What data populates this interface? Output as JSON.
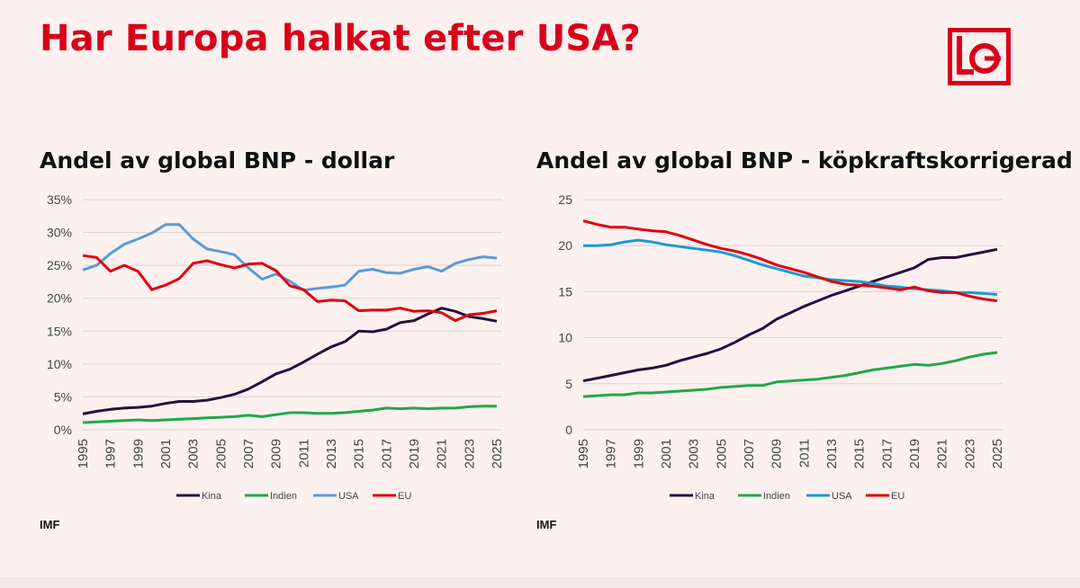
{
  "page": {
    "title": "Har Europa halkat efter USA?",
    "logo_text": "LO",
    "accent": "#d9001b"
  },
  "charts": [
    {
      "subtitle": "Andel av global BNP - dollar",
      "source": "IMF"
    },
    {
      "subtitle": "Andel av global BNP - köpkraftskorrigerad",
      "source": "IMF"
    }
  ],
  "chart_data": [
    {
      "type": "line",
      "title": "Andel av global BNP - dollar",
      "source": "IMF",
      "xlabel": "",
      "ylabel": "",
      "ylim": [
        0,
        35
      ],
      "yticks": [
        0,
        5,
        10,
        15,
        20,
        25,
        30,
        35
      ],
      "ytick_labels": [
        "0%",
        "5%",
        "10%",
        "15%",
        "20%",
        "25%",
        "30%",
        "35%"
      ],
      "grid": true,
      "legend": "bottom",
      "x": [
        1995,
        1996,
        1997,
        1998,
        1999,
        2000,
        2001,
        2002,
        2003,
        2004,
        2005,
        2006,
        2007,
        2008,
        2009,
        2010,
        2011,
        2012,
        2013,
        2014,
        2015,
        2016,
        2017,
        2018,
        2019,
        2020,
        2021,
        2022,
        2023,
        2024,
        2025
      ],
      "xtick_labels": [
        "1995",
        "1997",
        "1999",
        "2001",
        "2003",
        "2005",
        "2007",
        "2009",
        "2011",
        "2013",
        "2015",
        "2017",
        "2019",
        "2021",
        "2023",
        "2025"
      ],
      "series": [
        {
          "name": "Kina",
          "color": "#2a0f3d",
          "values": [
            2.4,
            2.8,
            3.1,
            3.3,
            3.4,
            3.6,
            4.0,
            4.3,
            4.3,
            4.5,
            4.9,
            5.4,
            6.2,
            7.3,
            8.5,
            9.2,
            10.3,
            11.5,
            12.6,
            13.4,
            15.0,
            14.9,
            15.3,
            16.3,
            16.6,
            17.6,
            18.5,
            18.0,
            17.2,
            16.9,
            16.5
          ]
        },
        {
          "name": "Indien",
          "color": "#1ea84a",
          "values": [
            1.1,
            1.2,
            1.3,
            1.4,
            1.5,
            1.4,
            1.5,
            1.6,
            1.7,
            1.8,
            1.9,
            2.0,
            2.2,
            2.0,
            2.3,
            2.6,
            2.6,
            2.5,
            2.5,
            2.6,
            2.8,
            3.0,
            3.3,
            3.2,
            3.3,
            3.2,
            3.3,
            3.3,
            3.5,
            3.6,
            3.6
          ]
        },
        {
          "name": "USA",
          "color": "#5b9bd5",
          "values": [
            24.3,
            25.0,
            26.8,
            28.2,
            29.0,
            29.9,
            31.2,
            31.2,
            29.0,
            27.5,
            27.1,
            26.6,
            24.6,
            22.9,
            23.7,
            22.6,
            21.2,
            21.5,
            21.7,
            22.0,
            24.1,
            24.4,
            23.9,
            23.8,
            24.4,
            24.8,
            24.1,
            25.3,
            25.9,
            26.3,
            26.1
          ]
        },
        {
          "name": "EU",
          "color": "#e0000f",
          "values": [
            26.5,
            26.2,
            24.1,
            25.0,
            24.1,
            21.3,
            22.0,
            23.0,
            25.3,
            25.7,
            25.1,
            24.6,
            25.2,
            25.3,
            24.2,
            21.9,
            21.3,
            19.5,
            19.7,
            19.6,
            18.1,
            18.2,
            18.2,
            18.5,
            18.0,
            18.1,
            17.8,
            16.6,
            17.5,
            17.7,
            18.1
          ]
        }
      ]
    },
    {
      "type": "line",
      "title": "Andel av global BNP - köpkraftskorrigerad",
      "source": "IMF",
      "xlabel": "",
      "ylabel": "",
      "ylim": [
        0,
        25
      ],
      "yticks": [
        0,
        5,
        10,
        15,
        20,
        25
      ],
      "ytick_labels": [
        "0",
        "5",
        "10",
        "15",
        "20",
        "25"
      ],
      "grid": true,
      "legend": "bottom",
      "x": [
        1995,
        1996,
        1997,
        1998,
        1999,
        2000,
        2001,
        2002,
        2003,
        2004,
        2005,
        2006,
        2007,
        2008,
        2009,
        2010,
        2011,
        2012,
        2013,
        2014,
        2015,
        2016,
        2017,
        2018,
        2019,
        2020,
        2021,
        2022,
        2023,
        2024,
        2025
      ],
      "xtick_labels": [
        "1995",
        "1997",
        "1999",
        "2001",
        "2003",
        "2005",
        "2007",
        "2009",
        "2011",
        "2013",
        "2015",
        "2017",
        "2019",
        "2021",
        "2023",
        "2025"
      ],
      "series": [
        {
          "name": "Kina",
          "color": "#2a0f3d",
          "values": [
            5.3,
            5.6,
            5.9,
            6.2,
            6.5,
            6.7,
            7.0,
            7.5,
            7.9,
            8.3,
            8.8,
            9.5,
            10.3,
            11.0,
            12.0,
            12.7,
            13.4,
            14.0,
            14.6,
            15.1,
            15.6,
            16.1,
            16.6,
            17.1,
            17.6,
            18.5,
            18.7,
            18.7,
            19.0,
            19.3,
            19.6
          ]
        },
        {
          "name": "Indien",
          "color": "#1ea84a",
          "values": [
            3.6,
            3.7,
            3.8,
            3.8,
            4.0,
            4.0,
            4.1,
            4.2,
            4.3,
            4.4,
            4.6,
            4.7,
            4.8,
            4.8,
            5.2,
            5.3,
            5.4,
            5.5,
            5.7,
            5.9,
            6.2,
            6.5,
            6.7,
            6.9,
            7.1,
            7.0,
            7.2,
            7.5,
            7.9,
            8.2,
            8.4
          ]
        },
        {
          "name": "USA",
          "color": "#1a9ad6",
          "values": [
            20.0,
            20.0,
            20.1,
            20.4,
            20.6,
            20.4,
            20.1,
            19.9,
            19.7,
            19.5,
            19.3,
            18.9,
            18.4,
            17.9,
            17.5,
            17.1,
            16.7,
            16.5,
            16.3,
            16.2,
            16.1,
            15.9,
            15.6,
            15.5,
            15.3,
            15.2,
            15.1,
            14.9,
            14.9,
            14.8,
            14.7
          ]
        },
        {
          "name": "EU",
          "color": "#e0000f",
          "values": [
            22.7,
            22.3,
            22.0,
            22.0,
            21.8,
            21.6,
            21.5,
            21.1,
            20.6,
            20.1,
            19.7,
            19.4,
            19.0,
            18.5,
            17.9,
            17.5,
            17.1,
            16.6,
            16.1,
            15.8,
            15.7,
            15.6,
            15.4,
            15.2,
            15.5,
            15.1,
            14.9,
            14.9,
            14.5,
            14.2,
            14.0
          ]
        }
      ]
    }
  ]
}
